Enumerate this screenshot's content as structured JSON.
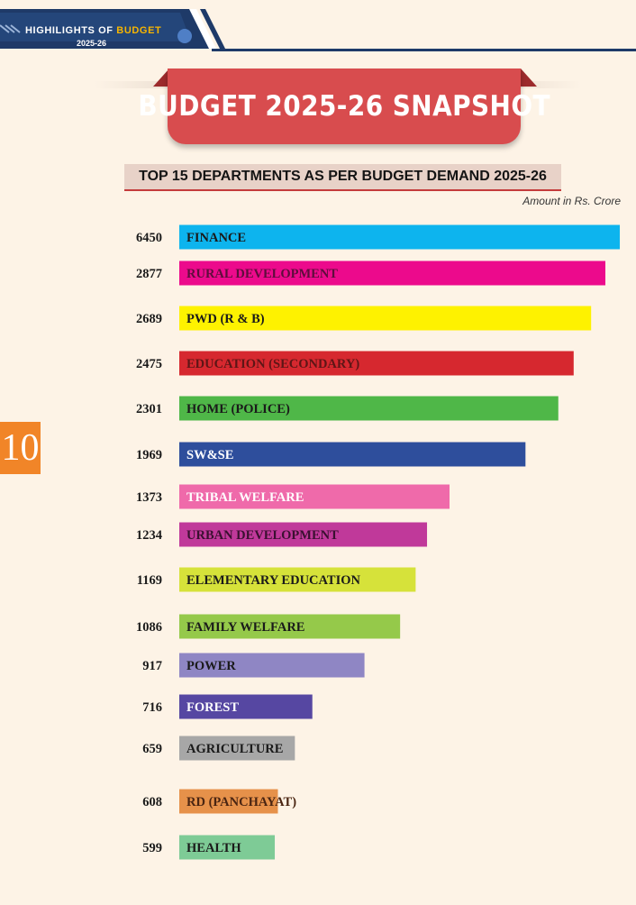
{
  "header": {
    "title_main": "HIGHILIGHTS OF ",
    "title_accent": "BUDGET",
    "year": "2025-26"
  },
  "banner": {
    "title": "BUDGET 2025-26 SNAPSHOT"
  },
  "page_number": "10",
  "colors": {
    "header_navy": "#1e3a68",
    "banner_red": "#d84c4e",
    "page_tab_orange": "#f18528",
    "background": "#fdf3e6"
  },
  "chart_data": {
    "type": "bar",
    "orientation": "horizontal",
    "title": "TOP 15 DEPARTMENTS AS PER BUDGET DEMAND 2025-26",
    "units": "Amount in Rs. Crore",
    "categories": [
      "FINANCE",
      "RURAL DEVELOPMENT",
      "PWD (R & B)",
      "EDUCATION (SECONDARY)",
      "HOME (POLICE)",
      "SW&SE",
      "TRIBAL WELFARE",
      "URBAN DEVELOPMENT",
      "ELEMENTARY EDUCATION",
      "FAMILY WELFARE",
      "POWER",
      "FOREST",
      "AGRICULTURE",
      "RD (PANCHAYAT)",
      "HEALTH"
    ],
    "values": [
      6450,
      2877,
      2689,
      2475,
      2301,
      1969,
      1373,
      1234,
      1169,
      1086,
      917,
      716,
      659,
      608,
      599
    ],
    "value_labels": [
      "6450",
      "2877",
      "2689",
      "2475",
      "2301",
      "1969",
      "1373",
      "1234",
      "1169",
      "1086",
      "917",
      "716",
      "659",
      "608",
      "599"
    ],
    "bar_colors": [
      "#0db4ee",
      "#ec0a8c",
      "#fef200",
      "#d6282f",
      "#4fb748",
      "#2e4e9c",
      "#ef6aaa",
      "#c0399a",
      "#d6e23a",
      "#95c94a",
      "#8f86c4",
      "#5647a2",
      "#a7a7a7",
      "#e6914a",
      "#7ecb96"
    ],
    "label_colors": [
      "#1a1a1a",
      "#5e0d3c",
      "#1a1a1a",
      "#5e1616",
      "#1a1a1a",
      "#ffffff",
      "#ffffff",
      "#3a1030",
      "#1a1a1a",
      "#1a1a1a",
      "#1a1a1a",
      "#ffffff",
      "#1a1a1a",
      "#4a2512",
      "#1a1a1a"
    ]
  }
}
